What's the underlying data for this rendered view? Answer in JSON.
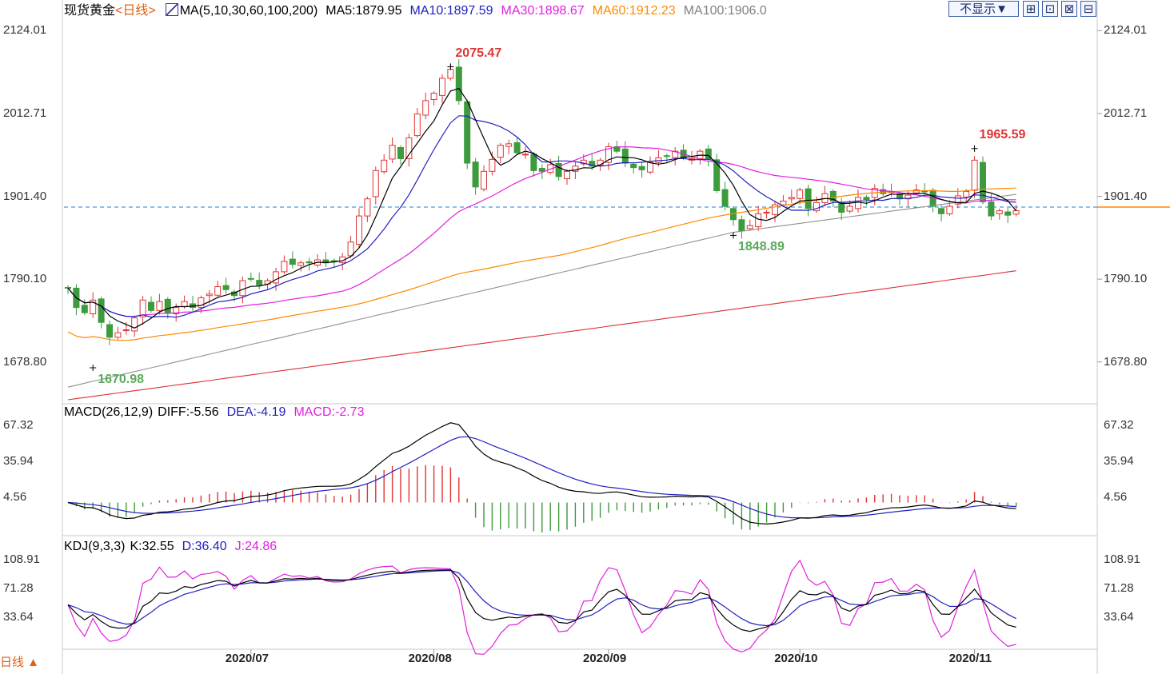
{
  "header": {
    "instrument": "现货黄金",
    "period": "<日线>",
    "ma_title": "MA(5,10,30,60,100,200)",
    "ma5": "MA5:1879.95",
    "ma10": "MA10:1897.59",
    "ma30": "MA30:1898.67",
    "ma60": "MA60:1912.23",
    "ma100": "MA100:1906.0"
  },
  "toolbar": {
    "hide_label": "不显示▼",
    "btn1": "⊞",
    "btn2": "⊡",
    "btn3": "⊠",
    "btn4": "⊟"
  },
  "macd_header": {
    "title": "MACD(26,12,9)",
    "diff": "DIFF:-5.56",
    "dea": "DEA:-4.19",
    "macd": "MACD:-2.73"
  },
  "kdj_header": {
    "title": "KDJ(9,3,3)",
    "k": "K:32.55",
    "d": "D:36.40",
    "j": "J:24.86"
  },
  "period_button": "日线 ▲",
  "colors": {
    "up": "#e03434",
    "down": "#3d9a3d",
    "ma5": "#000000",
    "ma10": "#2020c0",
    "ma30": "#e020e0",
    "ma60": "#ff8800",
    "ma100": "#909090",
    "ma200": "#dd3030",
    "crosshair": "#1e7fe0"
  },
  "chart_data": [
    {
      "type": "candlestick",
      "title": "现货黄金 日线",
      "y_ticks": [
        "2124.01",
        "2012.71",
        "1901.40",
        "1790.10",
        "1678.80"
      ],
      "y_tick_values": [
        2124.01,
        2012.71,
        1901.4,
        1790.1,
        1678.8
      ],
      "ylim": [
        1628,
        2133
      ],
      "x_labels": [
        "2020/07",
        "2020/08",
        "2020/09",
        "2020/10",
        "2020/11"
      ],
      "x_label_index": [
        22,
        44,
        65,
        88,
        109
      ],
      "annotations": [
        {
          "text": "2075.47",
          "value": 2075.47,
          "index": 46
        },
        {
          "text": "1670.98",
          "value": 1670.98,
          "index": 3
        },
        {
          "text": "1848.89",
          "value": 1848.89,
          "index": 80
        },
        {
          "text": "1965.59",
          "value": 1965.59,
          "index": 109
        }
      ],
      "reference_line": 1887,
      "close": [
        1778,
        1752,
        1745,
        1762,
        1732,
        1712,
        1718,
        1722,
        1738,
        1762,
        1748,
        1760,
        1745,
        1752,
        1760,
        1752,
        1765,
        1770,
        1780,
        1776,
        1768,
        1788,
        1790,
        1782,
        1788,
        1800,
        1814,
        1810,
        1812,
        1812,
        1816,
        1812,
        1814,
        1820,
        1840,
        1875,
        1898,
        1936,
        1950,
        1970,
        1952,
        1980,
        2012,
        2030,
        2040,
        2060,
        2072,
        2030,
        1946,
        1914,
        1935,
        1951,
        1970,
        1972,
        1960,
        1958,
        1936,
        1935,
        1944,
        1928,
        1935,
        1942,
        1950,
        1942,
        1950,
        1968,
        1962,
        1946,
        1940,
        1937,
        1947,
        1953,
        1955,
        1962,
        1953,
        1952,
        1962,
        1952,
        1909,
        1888,
        1870,
        1855,
        1862,
        1878,
        1880,
        1890,
        1895,
        1900,
        1910,
        1885,
        1893,
        1905,
        1895,
        1880,
        1888,
        1900,
        1897,
        1912,
        1905,
        1908,
        1898,
        1903,
        1910,
        1908,
        1888,
        1878,
        1888,
        1902,
        1908,
        1950,
        1894,
        1875,
        1882,
        1876,
        1882
      ]
    },
    {
      "type": "line",
      "title": "MACD(26,12,9)",
      "y_ticks": [
        "67.32",
        "35.94",
        "4.56"
      ],
      "y_tick_values": [
        67.32,
        35.94,
        4.56
      ],
      "diff_last": -5.56,
      "dea_last": -4.19,
      "macd_last": -2.73
    },
    {
      "type": "line",
      "title": "KDJ(9,3,3)",
      "y_ticks": [
        "108.91",
        "71.28",
        "33.64"
      ],
      "y_tick_values": [
        108.91,
        71.28,
        33.64
      ],
      "k_last": 32.55,
      "d_last": 36.4,
      "j_last": 24.86
    }
  ]
}
